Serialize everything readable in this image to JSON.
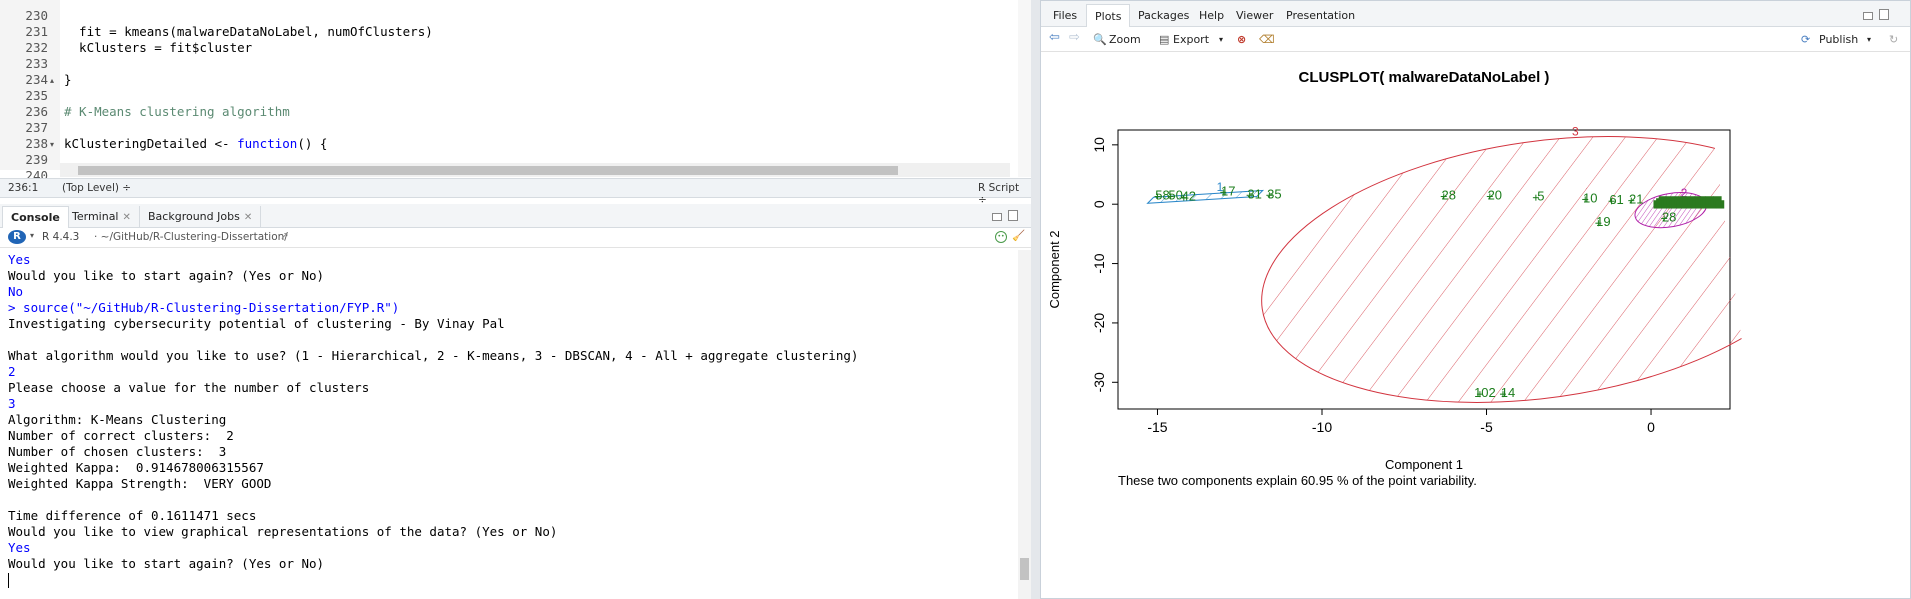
{
  "editor": {
    "lines": [
      {
        "n": "230",
        "text": ""
      },
      {
        "n": "231",
        "text": "  fit = kmeans(malwareDataNoLabel, numOfClusters)"
      },
      {
        "n": "232",
        "text": "  kClusters = fit$cluster"
      },
      {
        "n": "233",
        "text": ""
      },
      {
        "n": "234",
        "text": "}"
      },
      {
        "n": "235",
        "text": ""
      },
      {
        "n": "236",
        "text": "# K-Means clustering algorithm"
      },
      {
        "n": "237",
        "text": ""
      },
      {
        "n": "238",
        "text": "kClusteringDetailed <- ",
        "kw": "function",
        "rest": "() {"
      },
      {
        "n": "239",
        "text": ""
      },
      {
        "n": "240",
        "text": ""
      }
    ],
    "status": {
      "position": "236:1",
      "scope": "(Top Level) ÷",
      "filetype": "R Script ÷"
    }
  },
  "console": {
    "tabs": [
      {
        "label": "Console"
      },
      {
        "label": "Terminal"
      },
      {
        "label": "Background Jobs"
      }
    ],
    "r_version": "R 4.4.3",
    "path": "· ~/GitHub/R-Clustering-Dissertation/",
    "lines": [
      {
        "text": "Yes",
        "input": true
      },
      {
        "text": "Would you like to start again? (Yes or No)",
        "input": false
      },
      {
        "text": "No",
        "input": true
      },
      {
        "text": "> source(\"~/GitHub/R-Clustering-Dissertation/FYP.R\")",
        "input": true
      },
      {
        "text": "Investigating cybersecurity potential of clustering - By Vinay Pal",
        "input": false
      },
      {
        "text": "",
        "input": false
      },
      {
        "text": "What algorithm would you like to use? (1 - Hierarchical, 2 - K-means, 3 - DBSCAN, 4 - All + aggregate clustering)",
        "input": false
      },
      {
        "text": "2",
        "input": true
      },
      {
        "text": "Please choose a value for the number of clusters",
        "input": false
      },
      {
        "text": "3",
        "input": true
      },
      {
        "text": "Algorithm: K-Means Clustering",
        "input": false
      },
      {
        "text": "Number of correct clusters:  2",
        "input": false
      },
      {
        "text": "Number of chosen clusters:  3",
        "input": false
      },
      {
        "text": "Weighted Kappa:  0.914678006315567",
        "input": false
      },
      {
        "text": "Weighted Kappa Strength:  VERY GOOD",
        "input": false
      },
      {
        "text": "",
        "input": false
      },
      {
        "text": "Time difference of 0.1611471 secs",
        "input": false
      },
      {
        "text": "Would you like to view graphical representations of the data? (Yes or No)",
        "input": false
      },
      {
        "text": "Yes",
        "input": true
      },
      {
        "text": "Would you like to start again? (Yes or No)",
        "input": false
      }
    ]
  },
  "viewer": {
    "tabs": [
      {
        "label": "Files"
      },
      {
        "label": "Plots"
      },
      {
        "label": "Packages"
      },
      {
        "label": "Help"
      },
      {
        "label": "Viewer"
      },
      {
        "label": "Presentation"
      }
    ],
    "toolbar": {
      "zoom": "Zoom",
      "export": "Export",
      "publish": "Publish"
    }
  },
  "chart_data": {
    "type": "scatter",
    "title": "CLUSPLOT( malwareDataNoLabel )",
    "xlabel": "Component 1",
    "ylabel": "Component 2",
    "caption": "These two components explain 60.95 % of the point variability.",
    "xlim": [
      -16.2,
      2.4
    ],
    "ylim": [
      -34.5,
      12.5
    ],
    "xticks": [
      -15,
      -10,
      -5,
      0
    ],
    "yticks": [
      10,
      0,
      -10,
      -20,
      -30
    ],
    "clusters": [
      {
        "label": "3",
        "color": "#d2343f",
        "shape": "ellipse",
        "cx": -3.3,
        "cy": -11,
        "rx": 8.6,
        "ry": 21.6,
        "label_pos": [
          -2.3,
          11.6
        ]
      },
      {
        "label": "1",
        "color": "#2a87c9",
        "shape": "band",
        "from": [
          -15.3,
          0.5
        ],
        "to": [
          -11.8,
          1.8
        ],
        "label_pos": [
          -13.1,
          2.2
        ]
      },
      {
        "label": "2",
        "color": "#b020a8",
        "shape": "ellipse",
        "cx": 0.6,
        "cy": -1,
        "rx": 1.1,
        "ry": 2.8,
        "label_pos": [
          1.0,
          1.2
        ]
      }
    ],
    "point_labels": [
      {
        "x": -15.0,
        "y": 1.3,
        "t": "58"
      },
      {
        "x": -14.6,
        "y": 1.3,
        "t": "50"
      },
      {
        "x": -14.2,
        "y": 1.1,
        "t": "42"
      },
      {
        "x": -13.0,
        "y": 2.0,
        "t": "17"
      },
      {
        "x": -12.2,
        "y": 1.5,
        "t": "31"
      },
      {
        "x": -11.6,
        "y": 1.5,
        "t": "35"
      },
      {
        "x": -6.3,
        "y": 1.3,
        "t": "28"
      },
      {
        "x": -4.9,
        "y": 1.3,
        "t": "20"
      },
      {
        "x": -3.5,
        "y": 1.1,
        "t": "5"
      },
      {
        "x": -2.0,
        "y": 0.8,
        "t": "10"
      },
      {
        "x": -1.2,
        "y": 0.5,
        "t": "61"
      },
      {
        "x": -0.6,
        "y": 0.6,
        "t": "21"
      },
      {
        "x": -1.6,
        "y": -3.2,
        "t": "19"
      },
      {
        "x": 0.4,
        "y": -2.4,
        "t": "28"
      },
      {
        "x": -5.2,
        "y": -32.0,
        "t": "102"
      },
      {
        "x": -4.5,
        "y": -32.0,
        "t": "14"
      }
    ],
    "dense_cluster": {
      "from_x": 0.2,
      "to_x": 2.1,
      "y": 0.6
    }
  }
}
